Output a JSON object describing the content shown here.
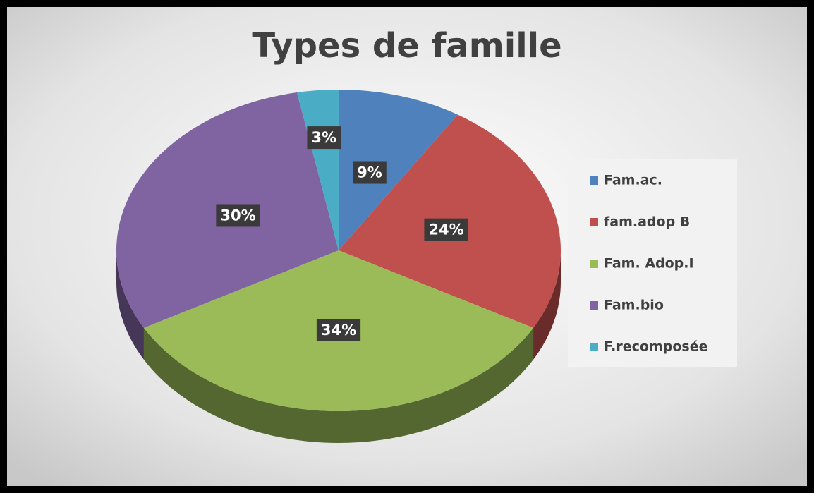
{
  "chart_data": {
    "type": "pie",
    "title": "Types de famille",
    "categories": [
      "Fam.ac.",
      "fam.adop B",
      "Fam. Adop.I",
      "Fam.bio",
      "F.recomposée"
    ],
    "values": [
      9,
      24,
      34,
      30,
      3
    ],
    "value_labels": [
      "9%",
      "24%",
      "34%",
      "30%",
      "3%"
    ],
    "colors": [
      "#4f81bd",
      "#c0504d",
      "#9bbb59",
      "#8064a2",
      "#4bacc6"
    ],
    "legend": "right"
  }
}
